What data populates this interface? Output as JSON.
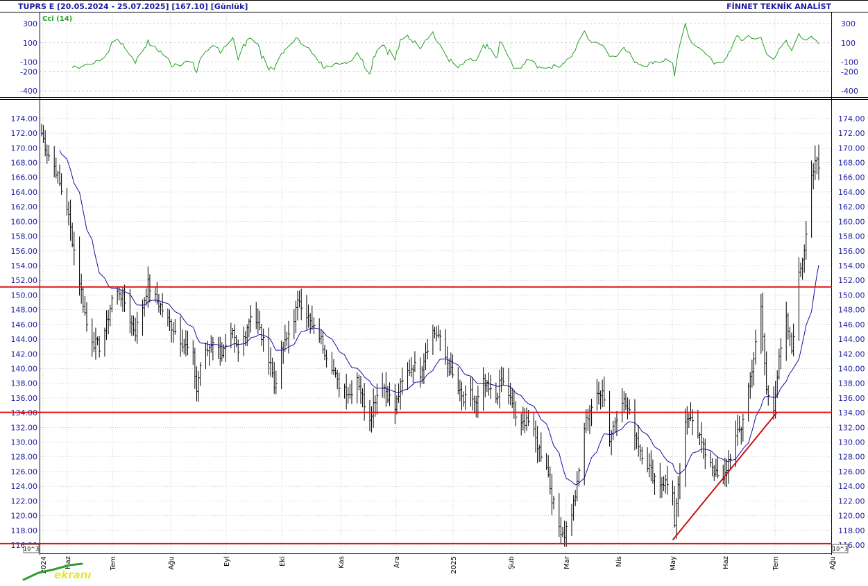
{
  "header": {
    "title": "TUPRS E  [20.05.2024 - 25.07.2025]  [167.10]  [Günlük]",
    "brand": "FİNNET TEKNİK ANALİST"
  },
  "footer": {
    "scale_tag": "10^3",
    "logo_text": "ekranı"
  },
  "colors": {
    "axis_text": "#1a1aa0",
    "price_bars": "#000000",
    "moving_average": "#1010a0",
    "cci": "#22a022",
    "support_resistance": "#e01010",
    "trendline": "#cc1010",
    "grid": "#b4b4b4"
  },
  "chart_data": [
    {
      "type": "line",
      "title": "",
      "series": [
        {
          "name": "Cci (14)"
        }
      ],
      "ylim": [
        -450,
        380
      ],
      "ticks": [
        300,
        100,
        -100,
        -200,
        -400
      ],
      "grid": true
    },
    {
      "type": "ohlc",
      "ylim": [
        116,
        175.5
      ],
      "yticks": [
        116,
        118,
        120,
        122,
        124,
        126,
        128,
        130,
        132,
        134,
        136,
        138,
        140,
        142,
        144,
        146,
        148,
        150,
        152,
        154,
        156,
        158,
        160,
        162,
        164,
        166,
        168,
        170,
        172,
        174
      ],
      "ytick_labels": [
        "116.00",
        "118.00",
        "120.00",
        "122.00",
        "124.00",
        "126.00",
        "128.00",
        "130.00",
        "132.00",
        "134.00",
        "136.00",
        "138.00",
        "140.00",
        "142.00",
        "144.00",
        "146.00",
        "148.00",
        "150.00",
        "152.00",
        "154.00",
        "156.00",
        "158.00",
        "160.00",
        "162.00",
        "164.00",
        "166.00",
        "168.00",
        "170.00",
        "172.00",
        "174.00"
      ],
      "x_month_labels": [
        "2024",
        "Haz",
        "Tem",
        "Ağu",
        "Eyl",
        "Eki",
        "Kas",
        "Ara",
        "2025",
        "Şub",
        "Mar",
        "Nis",
        "May",
        "Haz",
        "Tem",
        "Ağu"
      ],
      "x_range": [
        "2024-05-20",
        "2025-07-25"
      ],
      "last_close": 167.1,
      "horizontal_levels": [
        151.1,
        134.05,
        116.2
      ],
      "trendline": {
        "from": {
          "date": "2025-05-05",
          "price": 116.7
        },
        "to": {
          "date": "2025-07-02",
          "price": 134.1
        }
      },
      "closes": [
        [
          "2024-05-20",
          172.0
        ],
        [
          "2024-05-23",
          169.5
        ],
        [
          "2024-05-28",
          167.0
        ],
        [
          "2024-05-30",
          165.0
        ],
        [
          "2024-06-03",
          162.0
        ],
        [
          "2024-06-06",
          157.5
        ],
        [
          "2024-06-10",
          152.0
        ],
        [
          "2024-06-12",
          149.0
        ],
        [
          "2024-06-14",
          146.0
        ],
        [
          "2024-06-18",
          143.5
        ],
        [
          "2024-06-21",
          143.0
        ],
        [
          "2024-06-25",
          146.0
        ],
        [
          "2024-06-28",
          149.5
        ],
        [
          "2024-07-02",
          150.5
        ],
        [
          "2024-07-05",
          149.0
        ],
        [
          "2024-07-09",
          146.0
        ],
        [
          "2024-07-11",
          145.0
        ],
        [
          "2024-07-15",
          148.5
        ],
        [
          "2024-07-18",
          151.5
        ],
        [
          "2024-07-22",
          149.5
        ],
        [
          "2024-07-25",
          148.5
        ],
        [
          "2024-07-29",
          146.5
        ],
        [
          "2024-08-01",
          145.5
        ],
        [
          "2024-08-05",
          144.0
        ],
        [
          "2024-08-08",
          143.0
        ],
        [
          "2024-08-12",
          141.5
        ],
        [
          "2024-08-14",
          137.0
        ],
        [
          "2024-08-16",
          140.5
        ],
        [
          "2024-08-20",
          142.5
        ],
        [
          "2024-08-23",
          144.0
        ],
        [
          "2024-08-27",
          142.0
        ],
        [
          "2024-08-30",
          142.5
        ],
        [
          "2024-09-03",
          144.5
        ],
        [
          "2024-09-06",
          142.0
        ],
        [
          "2024-09-10",
          145.0
        ],
        [
          "2024-09-13",
          147.5
        ],
        [
          "2024-09-17",
          146.0
        ],
        [
          "2024-09-20",
          143.5
        ],
        [
          "2024-09-24",
          141.0
        ],
        [
          "2024-09-26",
          137.5
        ],
        [
          "2024-09-30",
          142.0
        ],
        [
          "2024-10-03",
          144.0
        ],
        [
          "2024-10-07",
          147.0
        ],
        [
          "2024-10-10",
          149.5
        ],
        [
          "2024-10-14",
          147.5
        ],
        [
          "2024-10-17",
          145.5
        ],
        [
          "2024-10-21",
          144.5
        ],
        [
          "2024-10-24",
          142.5
        ],
        [
          "2024-10-28",
          140.5
        ],
        [
          "2024-10-31",
          138.0
        ],
        [
          "2024-11-04",
          137.5
        ],
        [
          "2024-11-07",
          136.5
        ],
        [
          "2024-11-11",
          139.0
        ],
        [
          "2024-11-14",
          136.0
        ],
        [
          "2024-11-18",
          133.5
        ],
        [
          "2024-11-21",
          136.0
        ],
        [
          "2024-11-25",
          138.0
        ],
        [
          "2024-11-28",
          136.5
        ],
        [
          "2024-12-02",
          134.5
        ],
        [
          "2024-12-05",
          137.5
        ],
        [
          "2024-12-09",
          139.5
        ],
        [
          "2024-12-12",
          140.5
        ],
        [
          "2024-12-16",
          139.5
        ],
        [
          "2024-12-19",
          142.5
        ],
        [
          "2024-12-23",
          145.0
        ],
        [
          "2024-12-26",
          144.5
        ],
        [
          "2024-12-30",
          141.5
        ],
        [
          "2025-01-02",
          139.5
        ],
        [
          "2025-01-06",
          137.0
        ],
        [
          "2025-01-09",
          135.5
        ],
        [
          "2025-01-13",
          136.5
        ],
        [
          "2025-01-16",
          135.0
        ],
        [
          "2025-01-20",
          138.0
        ],
        [
          "2025-01-23",
          137.0
        ],
        [
          "2025-01-27",
          136.0
        ],
        [
          "2025-01-30",
          138.5
        ],
        [
          "2025-02-03",
          136.5
        ],
        [
          "2025-02-06",
          134.0
        ],
        [
          "2025-02-10",
          132.0
        ],
        [
          "2025-02-13",
          133.5
        ],
        [
          "2025-02-17",
          131.0
        ],
        [
          "2025-02-20",
          129.0
        ],
        [
          "2025-02-24",
          127.0
        ],
        [
          "2025-02-27",
          122.5
        ],
        [
          "2025-03-03",
          118.5
        ],
        [
          "2025-03-06",
          117.5
        ],
        [
          "2025-03-10",
          120.5
        ],
        [
          "2025-03-13",
          124.0
        ],
        [
          "2025-03-17",
          132.0
        ],
        [
          "2025-03-20",
          134.5
        ],
        [
          "2025-03-24",
          136.0
        ],
        [
          "2025-03-27",
          137.5
        ],
        [
          "2025-03-31",
          130.5
        ],
        [
          "2025-04-03",
          133.0
        ],
        [
          "2025-04-07",
          136.0
        ],
        [
          "2025-04-10",
          134.5
        ],
        [
          "2025-04-14",
          131.5
        ],
        [
          "2025-04-17",
          129.0
        ],
        [
          "2025-04-21",
          127.0
        ],
        [
          "2025-04-24",
          125.5
        ],
        [
          "2025-04-28",
          124.5
        ],
        [
          "2025-05-01",
          124.5
        ],
        [
          "2025-05-05",
          123.5
        ],
        [
          "2025-05-06",
          118.5
        ],
        [
          "2025-05-09",
          126.0
        ],
        [
          "2025-05-12",
          132.0
        ],
        [
          "2025-05-15",
          134.0
        ],
        [
          "2025-05-19",
          131.5
        ],
        [
          "2025-05-22",
          129.0
        ],
        [
          "2025-05-26",
          127.5
        ],
        [
          "2025-05-29",
          125.5
        ],
        [
          "2025-06-02",
          124.5
        ],
        [
          "2025-06-05",
          127.5
        ],
        [
          "2025-06-09",
          130.5
        ],
        [
          "2025-06-12",
          132.0
        ],
        [
          "2025-06-16",
          137.5
        ],
        [
          "2025-06-19",
          141.5
        ],
        [
          "2025-06-23",
          148.0
        ],
        [
          "2025-06-26",
          137.0
        ],
        [
          "2025-06-30",
          135.0
        ],
        [
          "2025-07-03",
          141.0
        ],
        [
          "2025-07-07",
          146.5
        ],
        [
          "2025-07-10",
          142.5
        ],
        [
          "2025-07-14",
          152.5
        ],
        [
          "2025-07-17",
          156.5
        ],
        [
          "2025-07-21",
          166.5
        ],
        [
          "2025-07-24",
          168.0
        ],
        [
          "2025-07-25",
          167.1
        ]
      ]
    }
  ]
}
